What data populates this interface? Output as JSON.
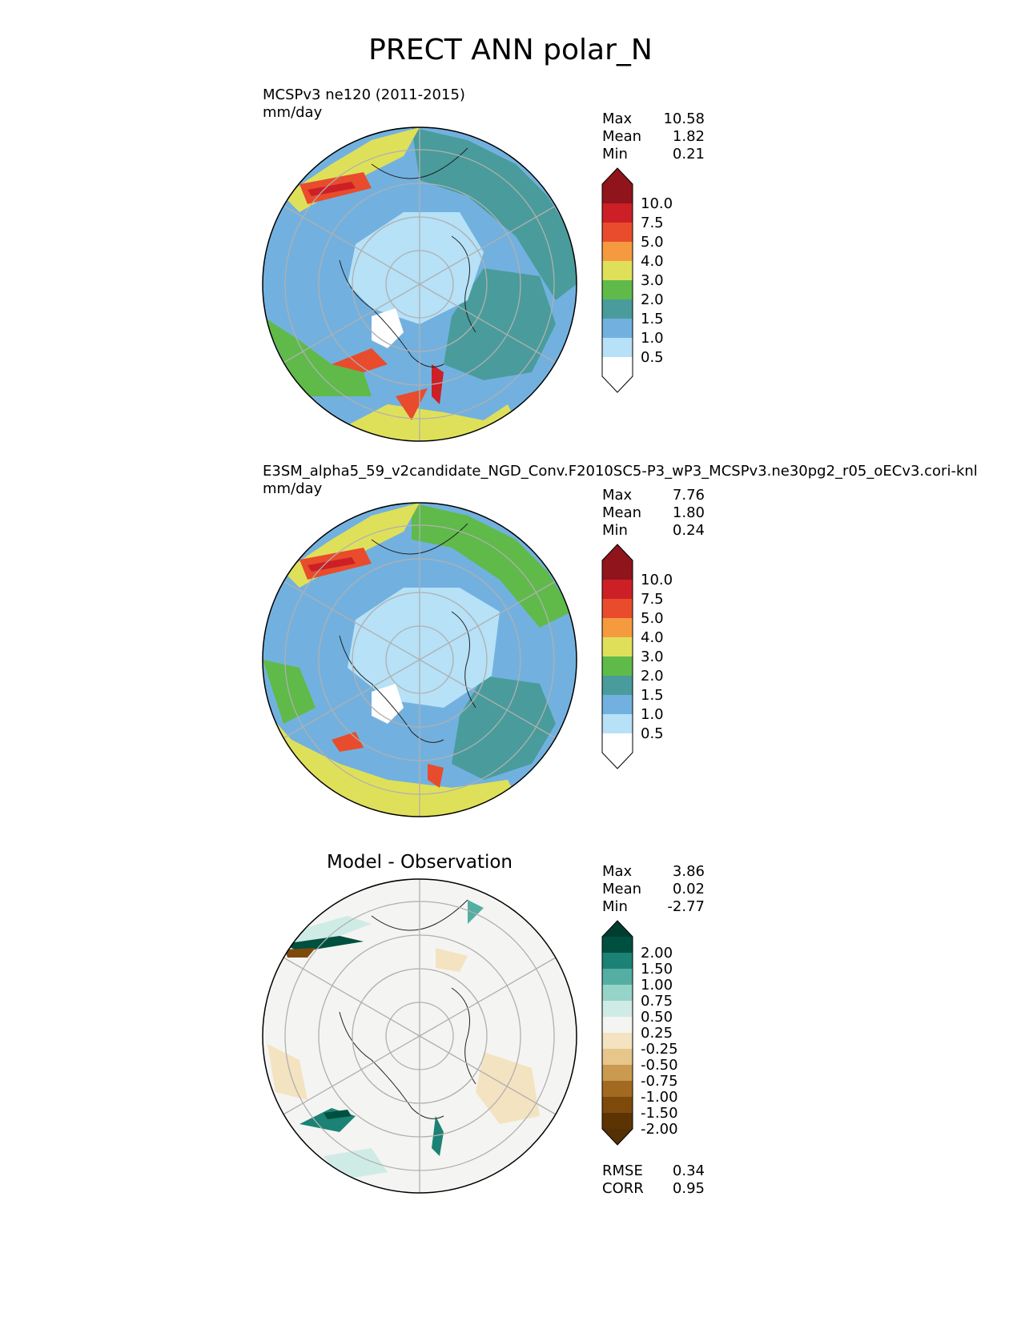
{
  "figure": {
    "title": "PRECT ANN polar_N"
  },
  "panels": [
    {
      "id": "test",
      "title_line1": "MCSPv3 ne120 (2011-2015)",
      "title_line2": "mm/day",
      "stats": [
        {
          "label": "Max",
          "value": "10.58"
        },
        {
          "label": "Mean",
          "value": "1.82"
        },
        {
          "label": "Min",
          "value": "0.21"
        }
      ],
      "colorbar": {
        "labels": [
          "10.0",
          "7.5",
          "5.0",
          "4.0",
          "3.0",
          "2.0",
          "1.5",
          "1.0",
          "0.5"
        ],
        "colors": [
          "#8f141b",
          "#cc1f26",
          "#e84c2c",
          "#f59a3f",
          "#dfe05a",
          "#5fba4a",
          "#499c9b",
          "#72b1df",
          "#b6e1f7",
          "#ffffff"
        ],
        "over_color": "#8f141b",
        "under_color": "#ffffff"
      }
    },
    {
      "id": "reference",
      "title_line1": "E3SM_alpha5_59_v2candidate_NGD_Conv.F2010SC5-P3_wP3_MCSPv3.ne30pg2_r05_oECv3.cori-knl",
      "title_line2": "mm/day",
      "stats": [
        {
          "label": "Max",
          "value": "7.76"
        },
        {
          "label": "Mean",
          "value": "1.80"
        },
        {
          "label": "Min",
          "value": "0.24"
        }
      ],
      "colorbar": {
        "labels": [
          "10.0",
          "7.5",
          "5.0",
          "4.0",
          "3.0",
          "2.0",
          "1.5",
          "1.0",
          "0.5"
        ],
        "colors": [
          "#8f141b",
          "#cc1f26",
          "#e84c2c",
          "#f59a3f",
          "#dfe05a",
          "#5fba4a",
          "#499c9b",
          "#72b1df",
          "#b6e1f7",
          "#ffffff"
        ],
        "over_color": "#8f141b",
        "under_color": "#ffffff"
      }
    },
    {
      "id": "difference",
      "title": "Model - Observation",
      "stats": [
        {
          "label": "Max",
          "value": "3.86"
        },
        {
          "label": "Mean",
          "value": "0.02"
        },
        {
          "label": "Min",
          "value": "-2.77"
        }
      ],
      "metrics": [
        {
          "label": "RMSE",
          "value": "0.34"
        },
        {
          "label": "CORR",
          "value": "0.95"
        }
      ],
      "colorbar": {
        "labels": [
          "2.00",
          "1.50",
          "1.00",
          "0.75",
          "0.50",
          "0.25",
          "-0.25",
          "-0.50",
          "-0.75",
          "-1.00",
          "-1.50",
          "-2.00"
        ],
        "colors": [
          "#00503f",
          "#1b8275",
          "#54aea2",
          "#96d3c8",
          "#cfebe6",
          "#f4f4f2",
          "#f4e3c0",
          "#e6c68b",
          "#c99a50",
          "#a26a20",
          "#7e4a0c",
          "#5c3404"
        ],
        "over_color": "#003d30",
        "under_color": "#543005"
      }
    }
  ]
}
